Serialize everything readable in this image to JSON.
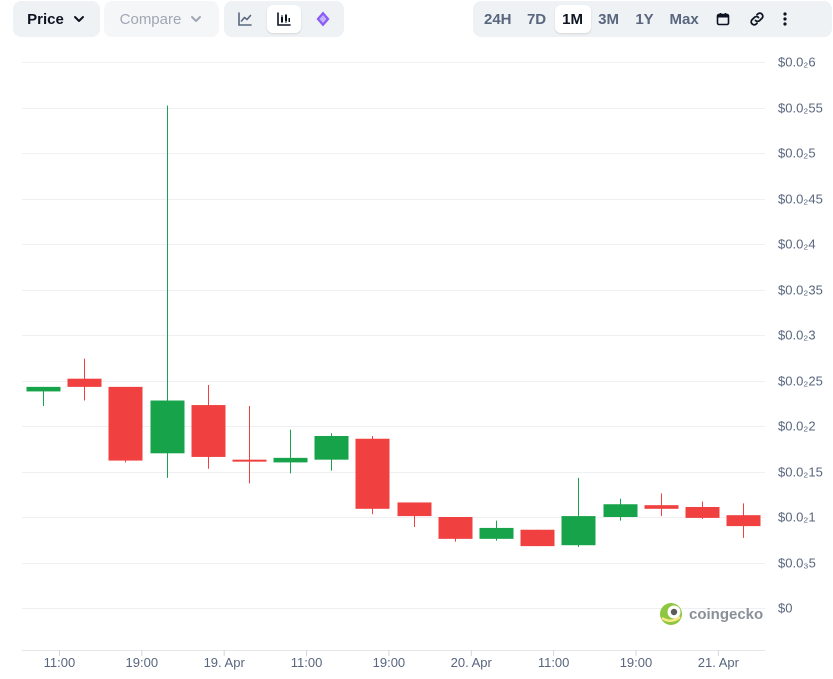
{
  "toolbar": {
    "price_label": "Price",
    "compare_label": "Compare",
    "chart_types": [
      {
        "icon": "line-chart-icon",
        "active": false
      },
      {
        "icon": "candlestick-chart-icon",
        "active": true
      },
      {
        "icon": "tradingview-icon",
        "active": false
      }
    ],
    "ranges": [
      "24H",
      "7D",
      "1M",
      "3M",
      "1Y",
      "Max"
    ],
    "active_range": "1M",
    "extra_icons": [
      "calendar-icon",
      "link-icon",
      "more-vertical-icon"
    ]
  },
  "colors": {
    "up": "#16a34a",
    "down": "#f04040",
    "grid": "#eef0f3",
    "toolbar_bg": "#eff2f5"
  },
  "watermark": "coingecko",
  "chart_data": {
    "type": "candlestick",
    "ylim": [
      0,
      6
    ],
    "y_ticks": [
      {
        "value": 6,
        "label": "$0.0₂6"
      },
      {
        "value": 5.5,
        "label": "$0.0₂55"
      },
      {
        "value": 5,
        "label": "$0.0₂5"
      },
      {
        "value": 4.5,
        "label": "$0.0₂45"
      },
      {
        "value": 4,
        "label": "$0.0₂4"
      },
      {
        "value": 3.5,
        "label": "$0.0₂35"
      },
      {
        "value": 3,
        "label": "$0.0₂3"
      },
      {
        "value": 2.5,
        "label": "$0.0₂25"
      },
      {
        "value": 2,
        "label": "$0.0₂2"
      },
      {
        "value": 1.5,
        "label": "$0.0₂15"
      },
      {
        "value": 1,
        "label": "$0.0₂1"
      },
      {
        "value": 0.5,
        "label": "$0.0₃5"
      },
      {
        "value": 0,
        "label": "$0"
      }
    ],
    "x_ticks": [
      {
        "index": 0.4,
        "label": "11:00"
      },
      {
        "index": 2.4,
        "label": "19:00"
      },
      {
        "index": 4.4,
        "label": "19. Apr"
      },
      {
        "index": 6.4,
        "label": "11:00"
      },
      {
        "index": 8.4,
        "label": "19:00"
      },
      {
        "index": 10.4,
        "label": "20. Apr"
      },
      {
        "index": 12.4,
        "label": "11:00"
      },
      {
        "index": 14.4,
        "label": "19:00"
      },
      {
        "index": 16.4,
        "label": "21. Apr"
      }
    ],
    "candles": [
      {
        "open": 2.38,
        "high": 2.41,
        "low": 2.22,
        "close": 2.43
      },
      {
        "open": 2.52,
        "high": 2.74,
        "low": 2.28,
        "close": 2.43
      },
      {
        "open": 2.43,
        "high": 2.43,
        "low": 1.6,
        "close": 1.62
      },
      {
        "open": 1.7,
        "high": 5.52,
        "low": 1.43,
        "close": 2.28
      },
      {
        "open": 2.23,
        "high": 2.45,
        "low": 1.53,
        "close": 1.66
      },
      {
        "open": 1.63,
        "high": 2.22,
        "low": 1.37,
        "close": 1.61
      },
      {
        "open": 1.6,
        "high": 1.96,
        "low": 1.48,
        "close": 1.65
      },
      {
        "open": 1.63,
        "high": 1.92,
        "low": 1.51,
        "close": 1.89
      },
      {
        "open": 1.86,
        "high": 1.89,
        "low": 1.03,
        "close": 1.09
      },
      {
        "open": 1.16,
        "high": 1.14,
        "low": 0.89,
        "close": 1.01
      },
      {
        "open": 1.0,
        "high": 1.0,
        "low": 0.73,
        "close": 0.76
      },
      {
        "open": 0.76,
        "high": 0.96,
        "low": 0.74,
        "close": 0.88
      },
      {
        "open": 0.86,
        "high": 0.86,
        "low": 0.68,
        "close": 0.68
      },
      {
        "open": 0.69,
        "high": 1.43,
        "low": 0.67,
        "close": 1.01
      },
      {
        "open": 1.0,
        "high": 1.2,
        "low": 0.96,
        "close": 1.14
      },
      {
        "open": 1.13,
        "high": 1.26,
        "low": 1.01,
        "close": 1.09
      },
      {
        "open": 1.11,
        "high": 1.17,
        "low": 0.98,
        "close": 0.99
      },
      {
        "open": 1.02,
        "high": 1.15,
        "low": 0.77,
        "close": 0.9
      }
    ]
  }
}
